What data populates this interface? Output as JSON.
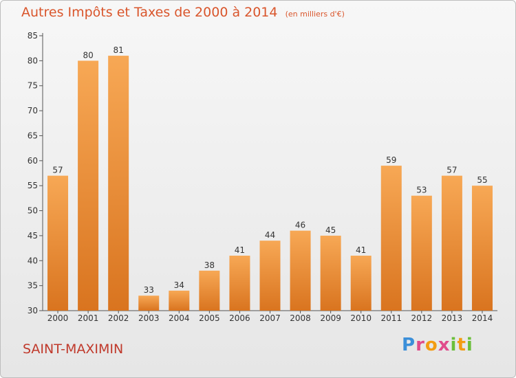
{
  "title": "Autres Impôts et Taxes de 2000 à 2014",
  "subtitle": "(en milliers d'€)",
  "city": "SAINT-MAXIMIN",
  "logo": {
    "text": "Proxiti",
    "colors": [
      "#3b8fd9",
      "#e04b8b",
      "#f39c12",
      "#6bbf3a"
    ]
  },
  "chart_data": {
    "type": "bar",
    "categories": [
      "2000",
      "2001",
      "2002",
      "2003",
      "2004",
      "2005",
      "2006",
      "2007",
      "2008",
      "2009",
      "2010",
      "2011",
      "2012",
      "2013",
      "2014"
    ],
    "values": [
      57,
      80,
      81,
      33,
      34,
      38,
      41,
      44,
      46,
      45,
      41,
      59,
      53,
      57,
      55
    ],
    "ylim": [
      30,
      85
    ],
    "yticks": [
      30,
      35,
      40,
      45,
      50,
      55,
      60,
      65,
      70,
      75,
      80,
      85
    ],
    "grid": false,
    "bar_color_top": "#f7a855",
    "bar_color_bottom": "#d9741f"
  }
}
